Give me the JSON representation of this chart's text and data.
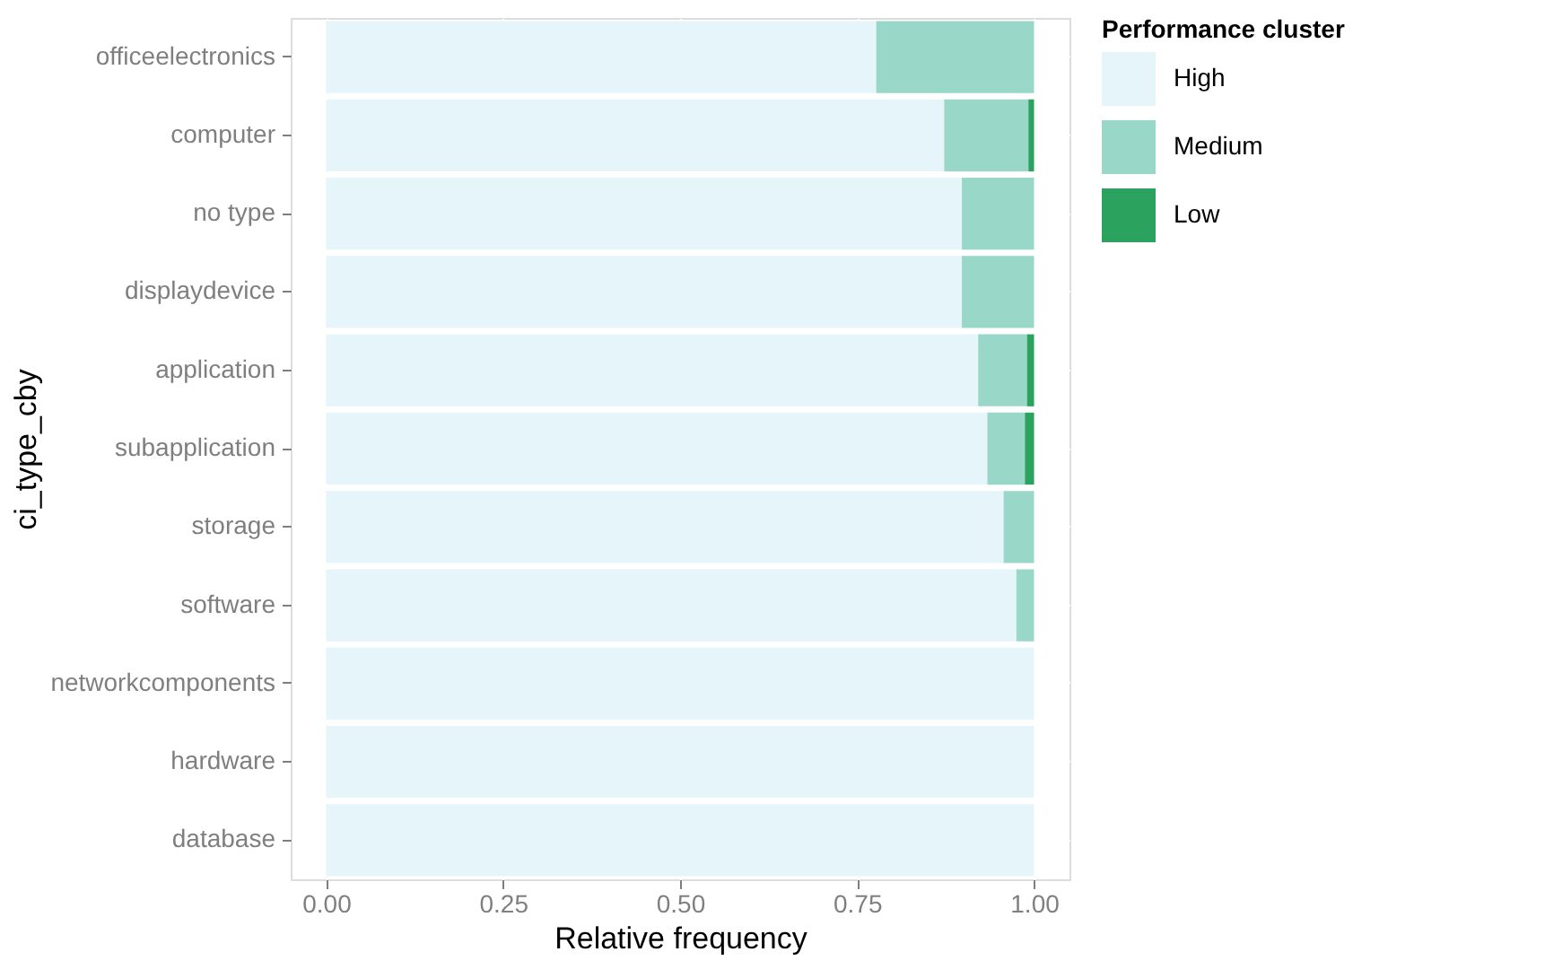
{
  "chart_data": {
    "type": "bar",
    "orientation": "horizontal",
    "stacked": true,
    "xlabel": "Relative frequency",
    "ylabel": "ci_type_cby",
    "legend_title": "Performance cluster",
    "legend": "right",
    "grid": true,
    "categories": [
      "officeelectronics",
      "computer",
      "no type",
      "displaydevice",
      "application",
      "subapplication",
      "storage",
      "software",
      "networkcomponents",
      "hardware",
      "database"
    ],
    "series": [
      {
        "name": "High",
        "color": "#e5f5f9",
        "values": [
          0.777,
          0.873,
          0.898,
          0.898,
          0.921,
          0.934,
          0.957,
          0.975,
          1.0,
          1.0,
          1.0
        ]
      },
      {
        "name": "Medium",
        "color": "#99d8c9",
        "values": [
          0.223,
          0.119,
          0.102,
          0.102,
          0.069,
          0.053,
          0.043,
          0.025,
          0,
          0,
          0
        ]
      },
      {
        "name": "Low",
        "color": "#2ca25f",
        "values": [
          0,
          0.008,
          0,
          0,
          0.01,
          0.013,
          0,
          0,
          0,
          0,
          0
        ]
      }
    ],
    "xlim": [
      -0.05,
      1.05
    ],
    "xticks": [
      {
        "value": 0,
        "label": "0.00"
      },
      {
        "value": 0.25,
        "label": "0.25"
      },
      {
        "value": 0.5,
        "label": "0.50"
      },
      {
        "value": 0.75,
        "label": "0.75"
      },
      {
        "value": 1,
        "label": "1.00"
      }
    ]
  }
}
